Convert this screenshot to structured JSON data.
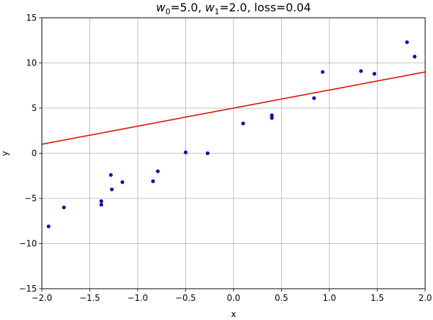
{
  "chart_data": {
    "type": "scatter",
    "title": {
      "w0_symbol": "w",
      "w0_sub": "0",
      "w0_value": "=5.0, ",
      "w1_symbol": "w",
      "w1_sub": "1",
      "w1_value": "=2.0, loss=0.04"
    },
    "xlabel": "x",
    "ylabel": "y",
    "xlim": [
      -2.0,
      2.0
    ],
    "ylim": [
      -15,
      15
    ],
    "x_ticks": [
      -2.0,
      -1.5,
      -1.0,
      -0.5,
      0.0,
      0.5,
      1.0,
      1.5,
      2.0
    ],
    "x_tick_labels": [
      "−2.0",
      "−1.5",
      "−1.0",
      "−0.5",
      "0.0",
      "0.5",
      "1.0",
      "1.5",
      "2.0"
    ],
    "y_ticks": [
      -15,
      -10,
      -5,
      0,
      5,
      10,
      15
    ],
    "y_tick_labels": [
      "−15",
      "−10",
      "−5",
      "0",
      "5",
      "10",
      "15"
    ],
    "grid": true,
    "series": [
      {
        "type": "scatter",
        "color": "#0000cc",
        "points": [
          [
            -1.93,
            -8.1
          ],
          [
            -1.77,
            -6.0
          ],
          [
            -1.38,
            -5.3
          ],
          [
            -1.38,
            -5.7
          ],
          [
            -1.28,
            -2.4
          ],
          [
            -1.27,
            -4.0
          ],
          [
            -1.16,
            -3.2
          ],
          [
            -0.84,
            -3.1
          ],
          [
            -0.79,
            -2.0
          ],
          [
            -0.5,
            0.1
          ],
          [
            -0.27,
            0.0
          ],
          [
            0.1,
            3.3
          ],
          [
            0.4,
            3.9
          ],
          [
            0.4,
            4.2
          ],
          [
            0.84,
            6.1
          ],
          [
            0.93,
            9.0
          ],
          [
            1.33,
            9.1
          ],
          [
            1.47,
            8.8
          ],
          [
            1.81,
            12.3
          ],
          [
            1.89,
            10.7
          ]
        ]
      },
      {
        "type": "line",
        "color": "#dd1100",
        "points": [
          [
            -2.0,
            1.0
          ],
          [
            2.0,
            9.0
          ]
        ]
      }
    ]
  }
}
